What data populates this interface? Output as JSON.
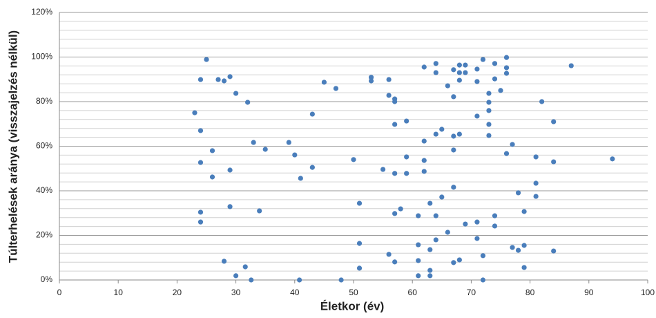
{
  "chart_data": {
    "type": "scatter",
    "x_label": "Életkor (év)",
    "y_label": "Túlterhelések aránya (visszajelzés nélkül)",
    "color": "#4a7ebb",
    "grid": true,
    "xlim": [
      0,
      100
    ],
    "xticks": [
      0,
      10,
      20,
      30,
      40,
      50,
      60,
      70,
      80,
      90,
      100
    ],
    "ylim": [
      0,
      120
    ],
    "yticks": [
      {
        "value": 0,
        "label": "0%"
      },
      {
        "value": 20,
        "label": "20%"
      },
      {
        "value": 40,
        "label": "40%"
      },
      {
        "value": 60,
        "label": "60%"
      },
      {
        "value": 80,
        "label": "80%"
      },
      {
        "value": 100,
        "label": "100%"
      },
      {
        "value": 120,
        "label": "120%"
      }
    ],
    "y_minor_grid": [
      4,
      8,
      12,
      16,
      24,
      28,
      32,
      36,
      44,
      48,
      52,
      56,
      64,
      68,
      72,
      76,
      84,
      88,
      92,
      96,
      104,
      108,
      112,
      116
    ],
    "x": [
      25,
      24,
      27,
      28,
      29,
      30,
      32,
      23,
      24,
      26,
      24,
      26,
      24,
      24,
      29,
      29,
      33,
      35,
      34,
      28,
      30,
      31.6,
      32.6,
      39,
      40,
      41,
      43,
      43,
      45,
      47,
      40.8,
      47.9,
      50,
      51,
      51,
      51,
      53,
      53,
      55,
      56,
      56,
      57,
      57,
      57,
      59,
      59,
      57,
      59,
      58,
      57,
      56,
      57,
      62,
      64,
      64,
      66,
      67,
      67,
      68,
      68,
      68,
      69,
      69,
      71,
      71,
      72,
      73,
      74,
      74,
      75,
      76,
      76,
      76,
      73,
      73,
      71,
      73,
      73,
      65,
      64,
      67,
      68,
      62,
      67,
      62,
      62,
      77,
      76,
      67,
      65,
      63,
      61,
      64,
      66,
      64,
      61,
      63,
      61,
      63,
      61,
      63,
      67,
      68,
      69,
      71,
      71,
      72,
      72,
      74,
      74,
      78,
      79,
      77,
      78,
      79,
      79,
      81,
      81,
      81,
      82,
      84,
      84,
      84,
      87,
      94
    ],
    "values": [
      98.9,
      89.9,
      89.9,
      89.3,
      91.2,
      83.7,
      79.7,
      75,
      67,
      58,
      52.7,
      46.2,
      30.4,
      26,
      32.9,
      49.3,
      61.7,
      58.6,
      31,
      8.4,
      1.9,
      5.9,
      0,
      61.7,
      56.1,
      45.6,
      50.5,
      74.4,
      88.7,
      85.9,
      0,
      0,
      54,
      34.4,
      16.4,
      5.3,
      90.9,
      89.3,
      49.6,
      89.9,
      82.8,
      81.2,
      80,
      69.8,
      71.3,
      55.2,
      47.8,
      47.8,
      31.9,
      29.8,
      11.5,
      8.1,
      95.5,
      97.1,
      93,
      87.1,
      82.2,
      94.3,
      96.4,
      93,
      89.6,
      96.4,
      93,
      94.6,
      89,
      98.9,
      83.7,
      97.1,
      90.2,
      85,
      99.8,
      95.2,
      92.7,
      79.7,
      76,
      73.5,
      69.8,
      64.8,
      67.6,
      65.4,
      64.5,
      65.4,
      62.3,
      58.3,
      53.6,
      48.7,
      60.8,
      56.7,
      41.6,
      37.2,
      34.4,
      28.8,
      28.8,
      21.4,
      18,
      15.8,
      13.6,
      8.7,
      4.3,
      1.9,
      1.9,
      7.8,
      9,
      25.1,
      26,
      18.6,
      10.9,
      0,
      28.8,
      24.2,
      39.1,
      30.7,
      14.6,
      13.3,
      15.5,
      5.6,
      43.4,
      37.5,
      55.2,
      80,
      71,
      53,
      13,
      96.1,
      54.3
    ]
  }
}
